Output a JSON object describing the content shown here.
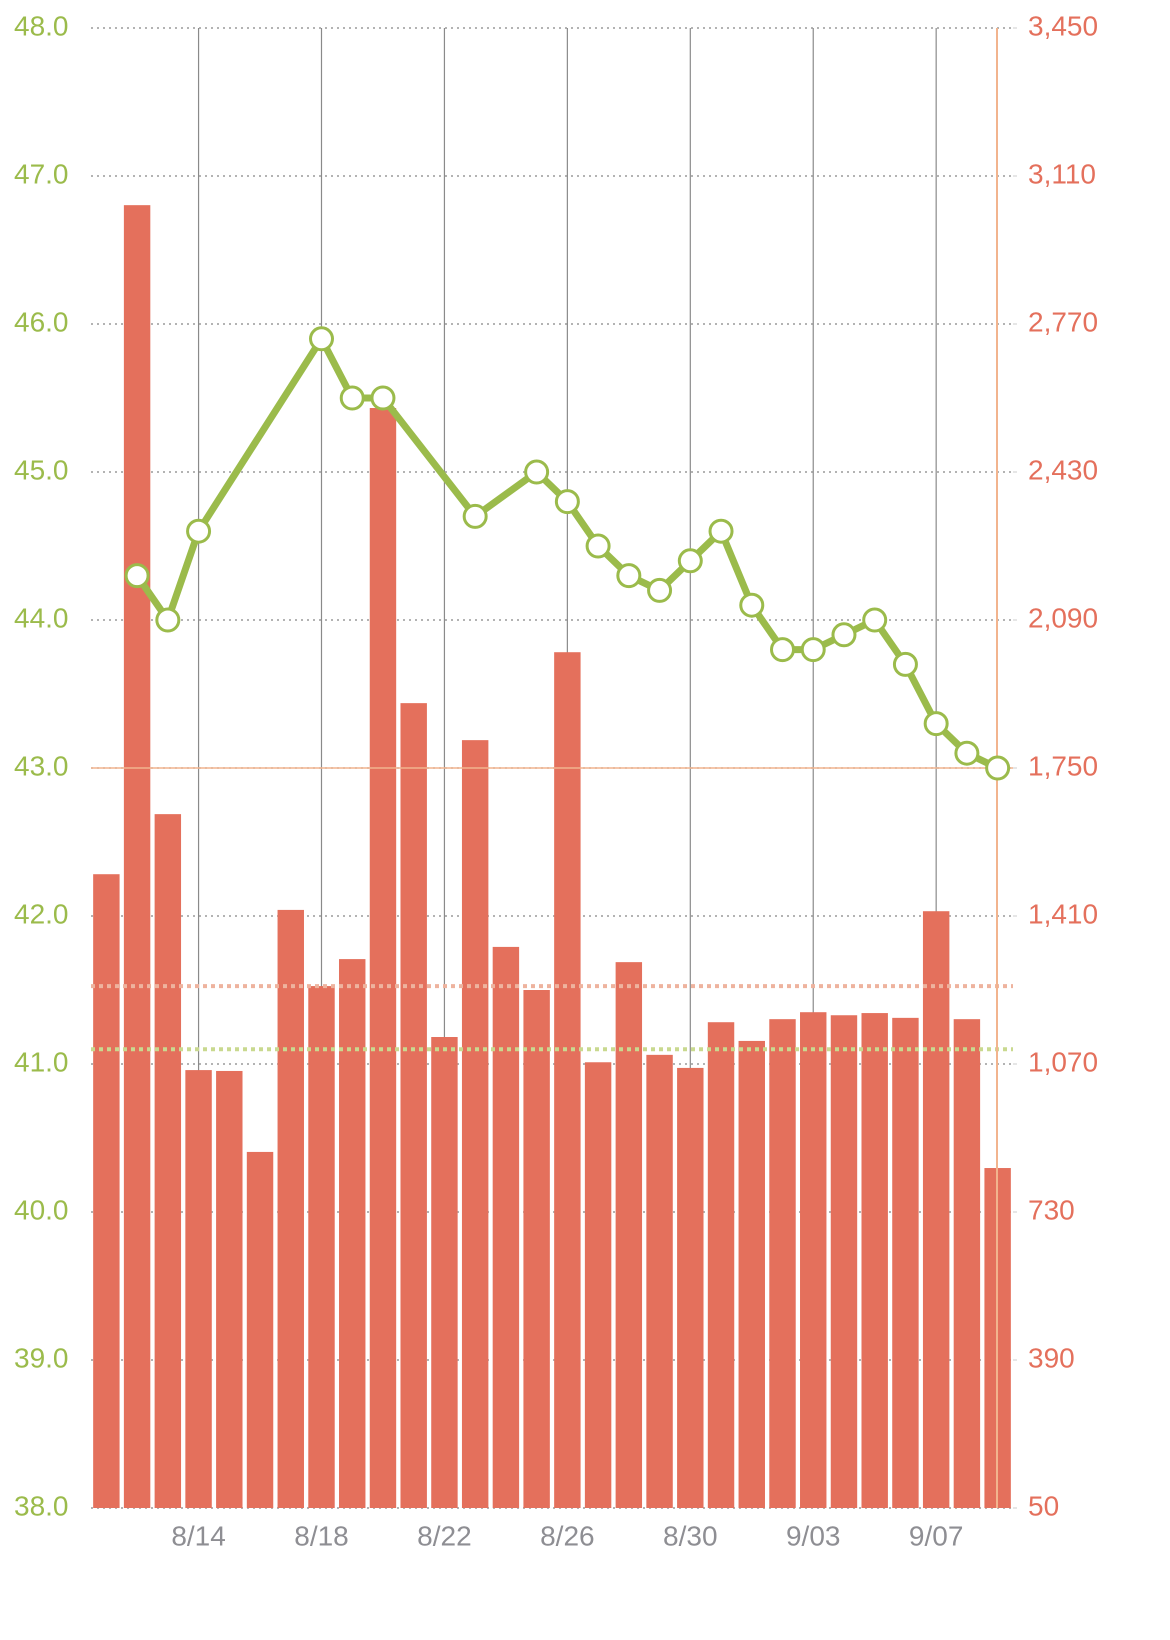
{
  "chart_data": {
    "type": "bar-line",
    "categories": [
      null,
      null,
      null,
      "8/14",
      null,
      null,
      null,
      "8/18",
      null,
      null,
      null,
      "8/22",
      null,
      null,
      null,
      "8/26",
      null,
      null,
      null,
      "8/30",
      null,
      null,
      null,
      "9/03",
      null,
      null,
      null,
      "9/07",
      null,
      null
    ],
    "series": [
      {
        "name": null,
        "type": "bar",
        "axis": "y2",
        "color": "#e4705c",
        "values": [
          1506,
          3043,
          1644,
          1056,
          1054,
          868,
          1424,
          1249,
          1311,
          2577,
          1899,
          1132,
          1814,
          1339,
          1240,
          2016,
          1074,
          1304,
          1091,
          1061,
          1166,
          1123,
          1173,
          1189,
          1182,
          1187,
          1176,
          1421,
          1173,
          831
        ]
      },
      {
        "name": null,
        "type": "line",
        "axis": "y",
        "color": "#9bbb4b",
        "connect_nulls": true,
        "values": [
          null,
          44.3,
          44.0,
          44.6,
          null,
          null,
          null,
          45.9,
          45.5,
          45.5,
          null,
          null,
          44.7,
          null,
          45.0,
          44.8,
          44.5,
          44.3,
          44.2,
          44.4,
          44.6,
          44.1,
          43.8,
          43.8,
          43.9,
          44.0,
          43.7,
          43.3,
          43.1,
          43.0
        ]
      }
    ],
    "ylim": [
      38,
      48
    ],
    "yticks": [
      {
        "value": 38,
        "label": "38.0"
      },
      {
        "value": 39,
        "label": "39.0"
      },
      {
        "value": 40,
        "label": "40.0"
      },
      {
        "value": 41,
        "label": "41.0"
      },
      {
        "value": 42,
        "label": "42.0"
      },
      {
        "value": 43,
        "label": "43.0"
      },
      {
        "value": 44,
        "label": "44.0"
      },
      {
        "value": 45,
        "label": "45.0"
      },
      {
        "value": 46,
        "label": "46.0"
      },
      {
        "value": 47,
        "label": "47.0"
      },
      {
        "value": 48,
        "label": "48.0"
      }
    ],
    "y2lim": [
      50,
      3450
    ],
    "y2ticks": [
      50,
      390,
      730,
      {
        "value": 1070,
        "label": "1,070"
      },
      {
        "value": 1410,
        "label": "1,410"
      },
      {
        "value": 1750,
        "label": "1,750"
      },
      {
        "value": 2090,
        "label": "2,090"
      },
      {
        "value": 2430,
        "label": "2,430"
      },
      {
        "value": 2770,
        "label": "2,770"
      },
      {
        "value": 3110,
        "label": "3,110"
      },
      {
        "value": 3450,
        "label": "3,450"
      }
    ],
    "reference_lines": [
      {
        "axis": "y2",
        "value": 1750,
        "color": "#f2b48e",
        "style": "solid"
      },
      {
        "axis": "y2",
        "value": 1249,
        "color": "#eeb39e",
        "style": "dotted"
      },
      {
        "axis": "y",
        "value": 41.1,
        "color": "#c9d98f",
        "style": "dotted"
      }
    ],
    "grid": true,
    "y_color": "#9bbb4b",
    "y2_color": "#e4705c"
  }
}
